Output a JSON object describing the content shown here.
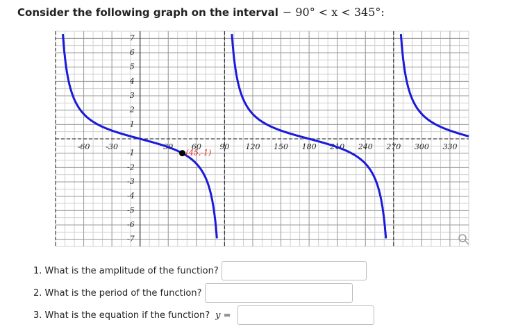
{
  "header": {
    "title": "Consider the following graph on the interval",
    "interval": "− 90° < x < 345°:"
  },
  "graph": {
    "xlim": [
      -90,
      350
    ],
    "ylim": [
      -7.5,
      7.5
    ],
    "xticks": [
      -60,
      -30,
      30,
      60,
      90,
      120,
      150,
      180,
      210,
      240,
      270,
      300,
      330
    ],
    "yticks": [
      -7,
      -6,
      -5,
      -4,
      -3,
      -2,
      -1,
      1,
      2,
      3,
      4,
      5,
      6,
      7
    ],
    "point": {
      "x": 45,
      "y": -1,
      "label": "(45,-1)"
    }
  },
  "questions": [
    {
      "text": "1. What is the amplitude of the function?"
    },
    {
      "text": "2. What is the period of the function?"
    },
    {
      "text": "3. What is the equation if the function?",
      "prefix": "y ="
    }
  ]
}
